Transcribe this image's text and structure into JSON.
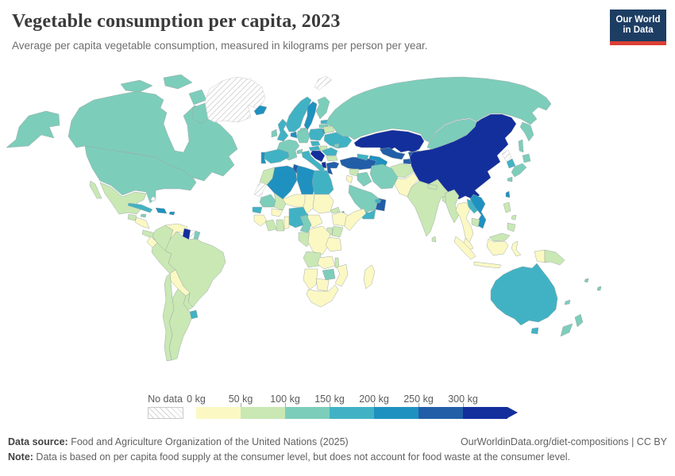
{
  "header": {
    "title": "Vegetable consumption per capita, 2023",
    "subtitle": "Average per capita vegetable consumption, measured in kilograms per person per year.",
    "logo": {
      "line1": "Our World",
      "line2": "in Data",
      "bg_color": "#1d3d63",
      "accent_color": "#dc3f34"
    }
  },
  "legend": {
    "no_data_label": "No data",
    "ticks": [
      "0 kg",
      "50 kg",
      "100 kg",
      "150 kg",
      "200 kg",
      "250 kg",
      "300 kg"
    ],
    "bins": [
      {
        "range": "0-50",
        "color": "#fbf8c4"
      },
      {
        "range": "50-100",
        "color": "#c9e8b4"
      },
      {
        "range": "100-150",
        "color": "#7dcdbb"
      },
      {
        "range": "150-200",
        "color": "#41b2c4"
      },
      {
        "range": "200-250",
        "color": "#1f91c0"
      },
      {
        "range": "250-300",
        "color": "#225ea8"
      },
      {
        "range": "300+",
        "color": "#132f9c"
      }
    ],
    "no_data_pattern": {
      "fill": "#ffffff",
      "line_color": "#cccccc"
    }
  },
  "footer": {
    "data_source_label": "Data source:",
    "data_source": " Food and Agriculture Organization of the United Nations (2025)",
    "link": "OurWorldinData.org/diet-compositions | CC BY",
    "note_label": "Note:",
    "note": " Data is based on per capita food supply at the consumer level, but does not account for food waste at the consumer level."
  },
  "chart_data": {
    "type": "heatmap",
    "subtype": "choropleth-world-map",
    "title": "Vegetable consumption per capita, 2023",
    "unit": "kg per person per year",
    "bin_edges": [
      0,
      50,
      100,
      150,
      200,
      250,
      300
    ],
    "legend_position": "bottom",
    "regions": [
      {
        "id": "alaska",
        "bin": "100-150"
      },
      {
        "id": "canada",
        "bin": "100-150"
      },
      {
        "id": "canada-arctic",
        "bin": "100-150"
      },
      {
        "id": "usa",
        "bin": "100-150"
      },
      {
        "id": "greenland",
        "bin": "no-data"
      },
      {
        "id": "iceland",
        "bin": "200-250"
      },
      {
        "id": "svalbard",
        "bin": "no-data"
      },
      {
        "id": "mexico",
        "bin": "50-100"
      },
      {
        "id": "guatemala",
        "bin": "50-100"
      },
      {
        "id": "honduras-nicaragua",
        "bin": "0-50"
      },
      {
        "id": "costa-panama",
        "bin": "50-100"
      },
      {
        "id": "cuba",
        "bin": "150-200"
      },
      {
        "id": "jamaica",
        "bin": "100-150"
      },
      {
        "id": "hispaniola",
        "bin": "200-250"
      },
      {
        "id": "puerto-rico",
        "bin": "200-250"
      },
      {
        "id": "bahamas",
        "bin": "no-data"
      },
      {
        "id": "colombia",
        "bin": "50-100"
      },
      {
        "id": "venezuela",
        "bin": "0-50"
      },
      {
        "id": "guyana",
        "bin": "300+"
      },
      {
        "id": "suriname",
        "bin": "no-data"
      },
      {
        "id": "fr-guiana",
        "bin": "100-150"
      },
      {
        "id": "ecuador",
        "bin": "0-50"
      },
      {
        "id": "peru",
        "bin": "50-100"
      },
      {
        "id": "brazil",
        "bin": "50-100"
      },
      {
        "id": "bolivia",
        "bin": "0-50"
      },
      {
        "id": "paraguay",
        "bin": "50-100"
      },
      {
        "id": "uruguay",
        "bin": "150-200"
      },
      {
        "id": "argentina",
        "bin": "50-100"
      },
      {
        "id": "chile",
        "bin": "50-100"
      },
      {
        "id": "norway",
        "bin": "150-200"
      },
      {
        "id": "sweden",
        "bin": "200-250"
      },
      {
        "id": "finland",
        "bin": "100-150"
      },
      {
        "id": "estonia",
        "bin": "150-200"
      },
      {
        "id": "latvia",
        "bin": "100-150"
      },
      {
        "id": "lithuania",
        "bin": "200-250"
      },
      {
        "id": "denmark",
        "bin": "100-150"
      },
      {
        "id": "uk",
        "bin": "150-200"
      },
      {
        "id": "ireland",
        "bin": "100-150"
      },
      {
        "id": "netherlands-belgium",
        "bin": "200-250"
      },
      {
        "id": "germany",
        "bin": "100-150"
      },
      {
        "id": "poland",
        "bin": "150-200"
      },
      {
        "id": "belarus",
        "bin": "50-100"
      },
      {
        "id": "ukraine",
        "bin": "150-200"
      },
      {
        "id": "france",
        "bin": "100-150"
      },
      {
        "id": "switzerland",
        "bin": "100-150"
      },
      {
        "id": "czech",
        "bin": "150-200"
      },
      {
        "id": "austria",
        "bin": "150-200"
      },
      {
        "id": "hungary",
        "bin": "50-100"
      },
      {
        "id": "romania",
        "bin": "150-200"
      },
      {
        "id": "bulgaria",
        "bin": "50-100"
      },
      {
        "id": "balkans",
        "bin": "300+"
      },
      {
        "id": "albania",
        "bin": "300+"
      },
      {
        "id": "greece",
        "bin": "250-300"
      },
      {
        "id": "italy",
        "bin": "150-200"
      },
      {
        "id": "spain",
        "bin": "150-200"
      },
      {
        "id": "portugal",
        "bin": "200-250"
      },
      {
        "id": "moldova",
        "bin": "100-150"
      },
      {
        "id": "russia",
        "bin": "100-150"
      },
      {
        "id": "kazakhstan",
        "bin": "300+"
      },
      {
        "id": "uzbekistan",
        "bin": "250-300"
      },
      {
        "id": "turkmenistan",
        "bin": "200-250"
      },
      {
        "id": "kyrgyzstan",
        "bin": "250-300"
      },
      {
        "id": "tajikistan",
        "bin": "250-300"
      },
      {
        "id": "afghanistan",
        "bin": "50-100"
      },
      {
        "id": "pakistan",
        "bin": "0-50"
      },
      {
        "id": "india",
        "bin": "50-100"
      },
      {
        "id": "nepal",
        "bin": "50-100"
      },
      {
        "id": "bangladesh",
        "bin": "50-100"
      },
      {
        "id": "sri-lanka",
        "bin": "50-100"
      },
      {
        "id": "china",
        "bin": "300+"
      },
      {
        "id": "mongolia",
        "bin": "100-150"
      },
      {
        "id": "n-korea",
        "bin": "no-data"
      },
      {
        "id": "s-korea",
        "bin": "150-200"
      },
      {
        "id": "japan",
        "bin": "100-150"
      },
      {
        "id": "taiwan",
        "bin": "200-250"
      },
      {
        "id": "myanmar",
        "bin": "50-100"
      },
      {
        "id": "thailand",
        "bin": "0-50"
      },
      {
        "id": "laos",
        "bin": "150-200"
      },
      {
        "id": "vietnam",
        "bin": "200-250"
      },
      {
        "id": "cambodia",
        "bin": "50-100"
      },
      {
        "id": "malaysia-peninsula",
        "bin": "0-50"
      },
      {
        "id": "malaysia-borneo",
        "bin": "50-100"
      },
      {
        "id": "indonesia",
        "bin": "0-50"
      },
      {
        "id": "papua-new-guinea",
        "bin": "50-100"
      },
      {
        "id": "philippines",
        "bin": "50-100"
      },
      {
        "id": "australia",
        "bin": "150-200"
      },
      {
        "id": "new-zealand",
        "bin": "100-150"
      },
      {
        "id": "pacific-islands",
        "bin": "100-150"
      },
      {
        "id": "turkey",
        "bin": "250-300"
      },
      {
        "id": "caucasus",
        "bin": "150-200"
      },
      {
        "id": "syria",
        "bin": "50-100"
      },
      {
        "id": "jordan-israel",
        "bin": "0-50"
      },
      {
        "id": "iraq",
        "bin": "100-150"
      },
      {
        "id": "iran",
        "bin": "100-150"
      },
      {
        "id": "saudi",
        "bin": "100-150"
      },
      {
        "id": "yemen",
        "bin": "150-200"
      },
      {
        "id": "oman",
        "bin": "250-300"
      },
      {
        "id": "uae",
        "bin": "150-200"
      },
      {
        "id": "morocco",
        "bin": "50-100"
      },
      {
        "id": "w-sahara",
        "bin": "no-data"
      },
      {
        "id": "algeria",
        "bin": "200-250"
      },
      {
        "id": "tunisia",
        "bin": "250-300"
      },
      {
        "id": "libya",
        "bin": "200-250"
      },
      {
        "id": "egypt",
        "bin": "150-200"
      },
      {
        "id": "mauritania",
        "bin": "100-150"
      },
      {
        "id": "senegal",
        "bin": "150-200"
      },
      {
        "id": "guinea",
        "bin": "0-50"
      },
      {
        "id": "mali",
        "bin": "50-100"
      },
      {
        "id": "burkina",
        "bin": "0-50"
      },
      {
        "id": "ivory-coast",
        "bin": "50-100"
      },
      {
        "id": "ghana",
        "bin": "50-100"
      },
      {
        "id": "benin-togo",
        "bin": "0-50"
      },
      {
        "id": "niger",
        "bin": "0-50"
      },
      {
        "id": "nigeria",
        "bin": "150-200"
      },
      {
        "id": "chad",
        "bin": "0-50"
      },
      {
        "id": "sudan",
        "bin": "0-50"
      },
      {
        "id": "eritrea",
        "bin": "50-100"
      },
      {
        "id": "djibouti",
        "bin": "150-200"
      },
      {
        "id": "ethiopia",
        "bin": "0-50"
      },
      {
        "id": "somalia",
        "bin": "0-50"
      },
      {
        "id": "kenya",
        "bin": "50-100"
      },
      {
        "id": "uganda",
        "bin": "50-100"
      },
      {
        "id": "car",
        "bin": "0-50"
      },
      {
        "id": "cameroon",
        "bin": "100-150"
      },
      {
        "id": "gabon-congo",
        "bin": "50-100"
      },
      {
        "id": "drc",
        "bin": "0-50"
      },
      {
        "id": "tanzania",
        "bin": "0-50"
      },
      {
        "id": "angola",
        "bin": "50-100"
      },
      {
        "id": "zambia",
        "bin": "0-50"
      },
      {
        "id": "malawi",
        "bin": "50-100"
      },
      {
        "id": "mozambique",
        "bin": "0-50"
      },
      {
        "id": "zimbabwe",
        "bin": "100-150"
      },
      {
        "id": "namibia",
        "bin": "0-50"
      },
      {
        "id": "botswana",
        "bin": "0-50"
      },
      {
        "id": "south-africa",
        "bin": "0-50"
      },
      {
        "id": "madagascar",
        "bin": "0-50"
      }
    ]
  }
}
